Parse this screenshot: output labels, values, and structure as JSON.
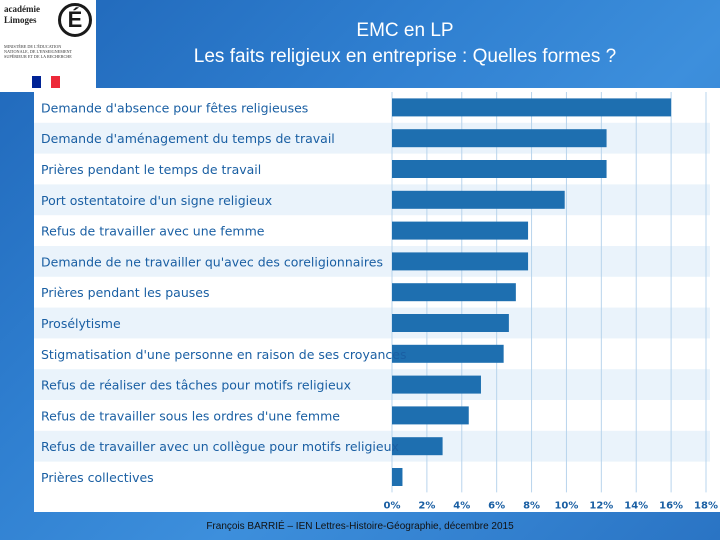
{
  "header": {
    "title_line1": "EMC en LP",
    "title_line2": "Les faits religieux en entreprise : Quelles formes ?"
  },
  "logo": {
    "academie_text": "académie Limoges",
    "letter": "É",
    "ministry_text": "Ministère de l'Éducation nationale, de l'Enseignement supérieur et de la Recherche",
    "flag_colors": [
      "#002395",
      "#ffffff",
      "#ed2939"
    ]
  },
  "footer": {
    "credit": "François BARRIÉ – IEN Lettres-Histoire-Géographie, décembre 2015"
  },
  "colors": {
    "bar": "#1e6fb0",
    "label_text": "#1a5fa3",
    "grid": "#b8d4ec",
    "row_band": "#eaf3fb"
  },
  "chart_data": {
    "type": "bar",
    "orientation": "horizontal",
    "categories": [
      "Demande d'absence pour fêtes religieuses",
      "Demande d'aménagement du temps de travail",
      "Prières pendant le temps de travail",
      "Port ostentatoire d'un signe religieux",
      "Refus de travailler avec une femme",
      "Demande de ne travailler qu'avec des coreligionnaires",
      "Prières pendant les pauses",
      "Prosélytisme",
      "Stigmatisation d'une personne en raison de ses croyances",
      "Refus de réaliser des tâches pour motifs religieux",
      "Refus de travailler sous les ordres d'une femme",
      "Refus de travailler avec un collègue pour motifs religieux",
      "Prières collectives"
    ],
    "values": [
      16,
      12.3,
      12.3,
      9.9,
      7.8,
      7.8,
      7.1,
      6.7,
      6.4,
      5.1,
      4.4,
      2.9,
      0.6
    ],
    "x_ticks": [
      "0%",
      "2%",
      "4%",
      "6%",
      "8%",
      "10%",
      "12%",
      "14%",
      "16%",
      "18%"
    ],
    "xlim": [
      0,
      18
    ],
    "grid": true
  }
}
